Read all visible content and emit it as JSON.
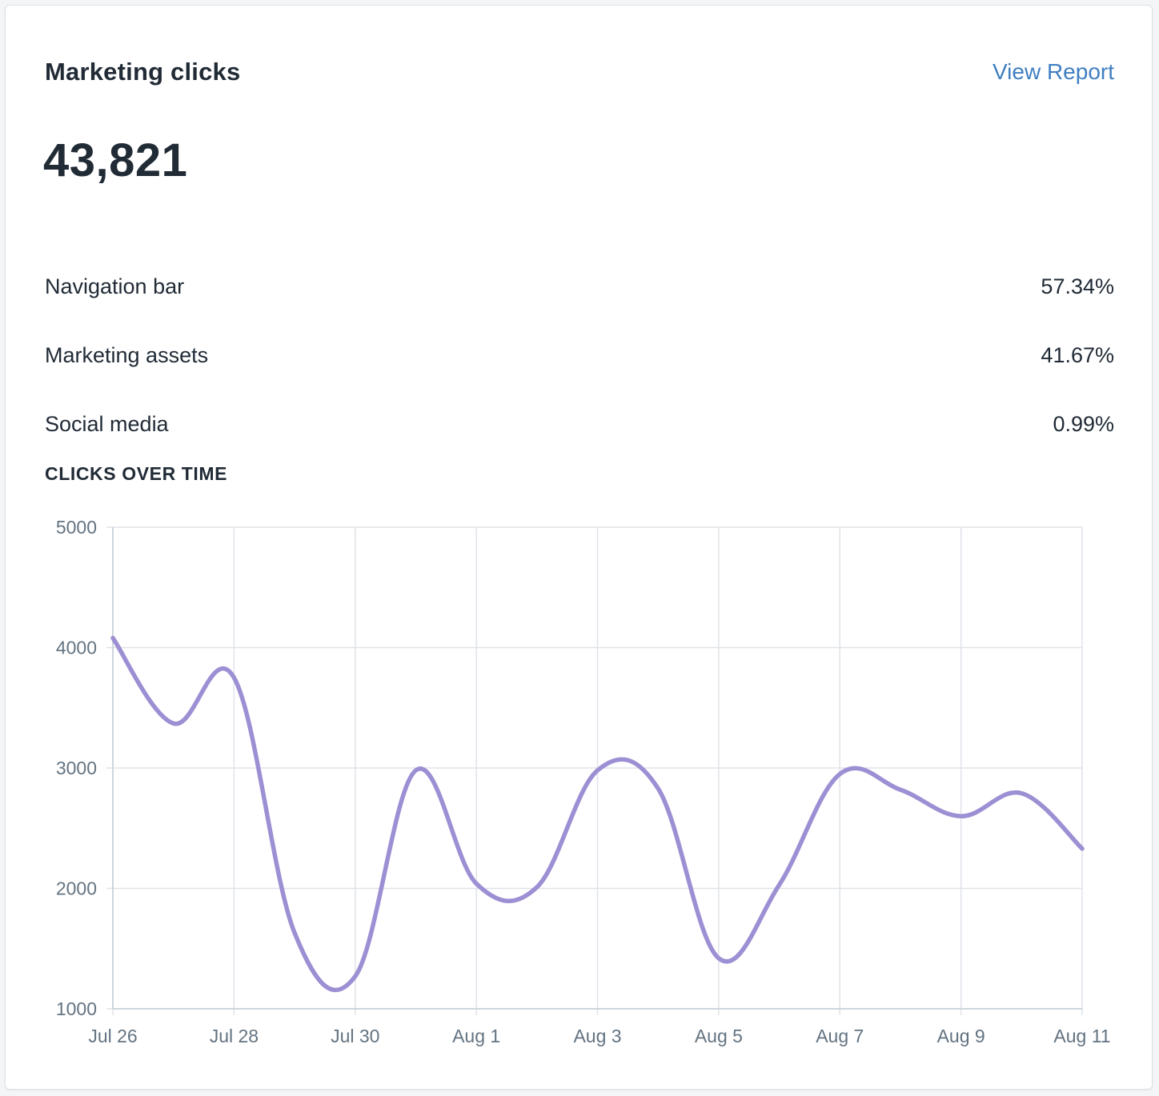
{
  "card": {
    "title": "Marketing clicks",
    "link_label": "View Report",
    "total": "43,821",
    "breakdown": [
      {
        "label": "Navigation bar",
        "value": "57.34%"
      },
      {
        "label": "Marketing assets",
        "value": "41.67%"
      },
      {
        "label": "Social media",
        "value": "0.99%"
      }
    ],
    "section_label": "CLICKS OVER TIME"
  },
  "colors": {
    "line": "#9d8fd3",
    "grid": "#dfe3e8",
    "link": "#3f7ec1",
    "text": "#212b36"
  },
  "chart_data": {
    "type": "line",
    "title": "CLICKS OVER TIME",
    "xlabel": "",
    "ylabel": "",
    "x": [
      "Jul 26",
      "Jul 27",
      "Jul 28",
      "Jul 29",
      "Jul 30",
      "Jul 31",
      "Aug 1",
      "Aug 2",
      "Aug 3",
      "Aug 4",
      "Aug 5",
      "Aug 6",
      "Aug 7",
      "Aug 8",
      "Aug 9",
      "Aug 10",
      "Aug 11"
    ],
    "x_tick_labels": [
      "Jul 26",
      "Jul 28",
      "Jul 30",
      "Aug 1",
      "Aug 3",
      "Aug 5",
      "Aug 7",
      "Aug 9",
      "Aug 11"
    ],
    "series": [
      {
        "values": [
          4080,
          3370,
          3750,
          1630,
          1270,
          2980,
          2040,
          2010,
          2980,
          2830,
          1420,
          2030,
          2950,
          2820,
          2600,
          2790,
          2330
        ]
      }
    ],
    "ylim": [
      1000,
      5000
    ],
    "y_ticks": [
      1000,
      2000,
      3000,
      4000,
      5000
    ],
    "grid": true,
    "legend": "none",
    "curve": "smooth"
  }
}
